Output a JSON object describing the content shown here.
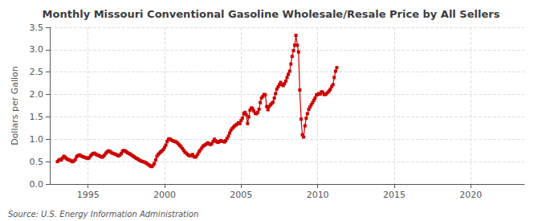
{
  "chart_data": {
    "type": "line",
    "title": "Monthly Missouri Conventional Gasoline Wholesale/Resale Price by All Sellers",
    "ylabel": "Dollars per Gallon",
    "annotations": [
      "Source: U.S. Energy Information Administration"
    ],
    "color": "#cc0000",
    "marker": "square",
    "line_style": "solid",
    "grid": true,
    "xlim": [
      1992.5,
      2023.5
    ],
    "ylim": [
      0.0,
      3.5
    ],
    "xticks": [
      1995,
      2000,
      2005,
      2010,
      2015,
      2020
    ],
    "yticks": [
      {
        "value": 0.0,
        "label": "0.0"
      },
      0.5,
      {
        "value": 1.0,
        "label": "1.0"
      },
      1.5,
      {
        "value": 2.0,
        "label": "2.0"
      },
      2.5,
      {
        "value": 3.0,
        "label": "3.0"
      },
      3.5
    ],
    "x": [
      1993.0,
      1993.08,
      1993.17,
      1993.25,
      1993.33,
      1993.42,
      1993.5,
      1993.58,
      1993.67,
      1993.75,
      1993.83,
      1993.92,
      1994.0,
      1994.08,
      1994.17,
      1994.25,
      1994.33,
      1994.42,
      1994.5,
      1994.58,
      1994.67,
      1994.75,
      1994.83,
      1994.92,
      1995.0,
      1995.08,
      1995.17,
      1995.25,
      1995.33,
      1995.42,
      1995.5,
      1995.58,
      1995.67,
      1995.75,
      1995.83,
      1995.92,
      1996.0,
      1996.08,
      1996.17,
      1996.25,
      1996.33,
      1996.42,
      1996.5,
      1996.58,
      1996.67,
      1996.75,
      1996.83,
      1996.92,
      1997.0,
      1997.08,
      1997.17,
      1997.25,
      1997.33,
      1997.42,
      1997.5,
      1997.58,
      1997.67,
      1997.75,
      1997.83,
      1997.92,
      1998.0,
      1998.08,
      1998.17,
      1998.25,
      1998.33,
      1998.42,
      1998.5,
      1998.58,
      1998.67,
      1998.75,
      1998.83,
      1998.92,
      1999.0,
      1999.08,
      1999.17,
      1999.25,
      1999.33,
      1999.42,
      1999.5,
      1999.58,
      1999.67,
      1999.75,
      1999.83,
      1999.92,
      2000.0,
      2000.08,
      2000.17,
      2000.25,
      2000.33,
      2000.42,
      2000.5,
      2000.58,
      2000.67,
      2000.75,
      2000.83,
      2000.92,
      2001.0,
      2001.08,
      2001.17,
      2001.25,
      2001.33,
      2001.42,
      2001.5,
      2001.58,
      2001.67,
      2001.75,
      2001.83,
      2001.92,
      2002.0,
      2002.08,
      2002.17,
      2002.25,
      2002.33,
      2002.42,
      2002.5,
      2002.58,
      2002.67,
      2002.75,
      2002.83,
      2002.92,
      2003.0,
      2003.08,
      2003.17,
      2003.25,
      2003.33,
      2003.42,
      2003.5,
      2003.58,
      2003.67,
      2003.75,
      2003.83,
      2003.92,
      2004.0,
      2004.08,
      2004.17,
      2004.25,
      2004.33,
      2004.42,
      2004.5,
      2004.58,
      2004.67,
      2004.75,
      2004.83,
      2004.92,
      2005.0,
      2005.08,
      2005.17,
      2005.25,
      2005.33,
      2005.42,
      2005.5,
      2005.58,
      2005.67,
      2005.75,
      2005.83,
      2005.92,
      2006.0,
      2006.08,
      2006.17,
      2006.25,
      2006.33,
      2006.42,
      2006.5,
      2006.58,
      2006.67,
      2006.75,
      2006.83,
      2006.92,
      2007.0,
      2007.08,
      2007.17,
      2007.25,
      2007.33,
      2007.42,
      2007.5,
      2007.58,
      2007.67,
      2007.75,
      2007.83,
      2007.92,
      2008.0,
      2008.08,
      2008.17,
      2008.25,
      2008.33,
      2008.42,
      2008.5,
      2008.58,
      2008.67,
      2008.75,
      2008.83,
      2008.92,
      2009.0,
      2009.08,
      2009.17,
      2009.25,
      2009.33,
      2009.42,
      2009.5,
      2009.58,
      2009.67,
      2009.75,
      2009.83,
      2009.92,
      2010.0,
      2010.08,
      2010.17,
      2010.25,
      2010.33,
      2010.42,
      2010.5,
      2010.58,
      2010.67,
      2010.75,
      2010.83,
      2010.92,
      2011.0,
      2011.08,
      2011.17,
      2011.25
    ],
    "values": [
      0.5,
      0.53,
      0.55,
      0.54,
      0.58,
      0.62,
      0.6,
      0.57,
      0.55,
      0.54,
      0.53,
      0.51,
      0.5,
      0.52,
      0.55,
      0.61,
      0.63,
      0.65,
      0.64,
      0.62,
      0.61,
      0.6,
      0.59,
      0.58,
      0.57,
      0.59,
      0.63,
      0.66,
      0.68,
      0.69,
      0.67,
      0.65,
      0.64,
      0.63,
      0.61,
      0.6,
      0.62,
      0.65,
      0.69,
      0.72,
      0.74,
      0.73,
      0.71,
      0.69,
      0.68,
      0.67,
      0.66,
      0.64,
      0.63,
      0.65,
      0.68,
      0.73,
      0.75,
      0.74,
      0.72,
      0.7,
      0.68,
      0.67,
      0.65,
      0.63,
      0.61,
      0.59,
      0.57,
      0.56,
      0.54,
      0.52,
      0.51,
      0.5,
      0.49,
      0.48,
      0.46,
      0.44,
      0.42,
      0.4,
      0.39,
      0.42,
      0.46,
      0.54,
      0.62,
      0.66,
      0.69,
      0.72,
      0.74,
      0.77,
      0.82,
      0.87,
      0.95,
      1.0,
      1.01,
      0.99,
      0.97,
      0.96,
      0.95,
      0.94,
      0.92,
      0.89,
      0.86,
      0.83,
      0.79,
      0.75,
      0.71,
      0.69,
      0.66,
      0.64,
      0.63,
      0.64,
      0.66,
      0.61,
      0.6,
      0.62,
      0.67,
      0.72,
      0.76,
      0.8,
      0.84,
      0.86,
      0.88,
      0.9,
      0.92,
      0.9,
      0.88,
      0.9,
      0.95,
      1.0,
      0.97,
      0.94,
      0.93,
      0.95,
      0.97,
      0.96,
      0.95,
      0.94,
      0.97,
      1.02,
      1.07,
      1.14,
      1.2,
      1.24,
      1.27,
      1.3,
      1.32,
      1.34,
      1.37,
      1.35,
      1.42,
      1.47,
      1.57,
      1.6,
      1.55,
      1.35,
      1.5,
      1.65,
      1.7,
      1.68,
      1.63,
      1.58,
      1.57,
      1.6,
      1.67,
      1.82,
      1.92,
      1.96,
      2.0,
      1.99,
      1.73,
      1.66,
      1.73,
      1.77,
      1.8,
      1.83,
      1.92,
      2.02,
      2.12,
      2.17,
      2.22,
      2.27,
      2.22,
      2.2,
      2.24,
      2.3,
      2.38,
      2.45,
      2.52,
      2.68,
      2.85,
      2.98,
      3.1,
      3.32,
      3.1,
      2.95,
      2.1,
      1.45,
      1.1,
      1.05,
      1.3,
      1.47,
      1.57,
      1.67,
      1.72,
      1.77,
      1.82,
      1.87,
      1.92,
      1.99,
      2.0,
      2.02,
      2.01,
      2.06,
      2.05,
      2.0,
      2.0,
      2.02,
      2.05,
      2.08,
      2.12,
      2.18,
      2.22,
      2.38,
      2.52,
      2.6
    ]
  }
}
